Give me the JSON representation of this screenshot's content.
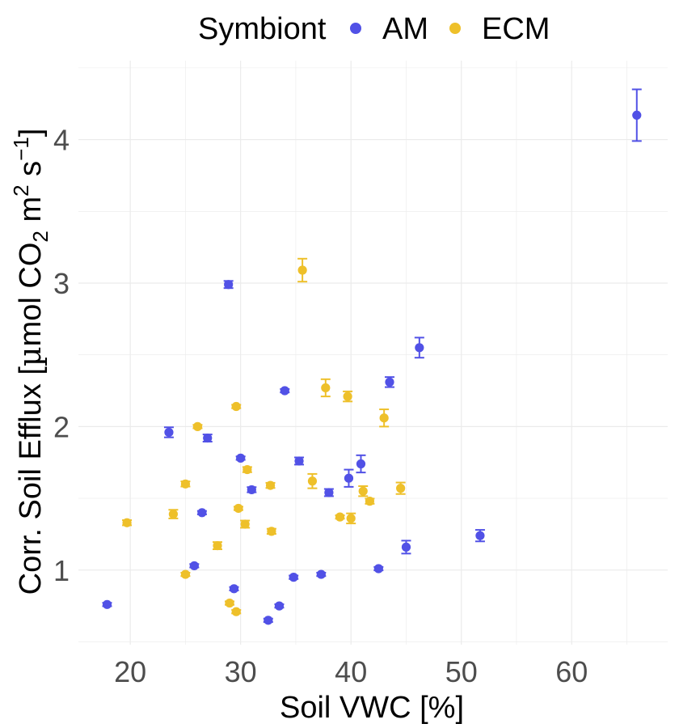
{
  "chart_data": {
    "type": "scatter",
    "xlabel": "Soil VWC [%]",
    "ylabel": {
      "prefix": "Corr. Soil Efflux  [",
      "mu": "µ",
      "mol": "mol CO",
      "sub": "2",
      "unit_m": " m",
      "sup_m": "2",
      "unit_s": "  s",
      "sup_s": "−1",
      "suffix": "]"
    },
    "xlim": [
      15.3,
      68.7
    ],
    "ylim": [
      0.48,
      4.55
    ],
    "x_ticks": [
      20,
      30,
      40,
      50,
      60
    ],
    "y_ticks": [
      1,
      2,
      3,
      4
    ],
    "grid": true,
    "legend": {
      "title": "Symbiont",
      "position": "top",
      "entries": [
        "AM",
        "ECM"
      ]
    },
    "series": [
      {
        "name": "AM",
        "color": "#5151e6",
        "points": [
          {
            "x": 17.9,
            "y": 0.76,
            "err": 0.012
          },
          {
            "x": 23.5,
            "y": 1.96,
            "err": 0.035
          },
          {
            "x": 25.8,
            "y": 1.03,
            "err": 0.012
          },
          {
            "x": 26.5,
            "y": 1.4,
            "err": 0.012
          },
          {
            "x": 27.0,
            "y": 1.92,
            "err": 0.025
          },
          {
            "x": 28.9,
            "y": 2.99,
            "err": 0.025
          },
          {
            "x": 29.4,
            "y": 0.87,
            "err": 0.012
          },
          {
            "x": 30.0,
            "y": 1.78,
            "err": 0.012
          },
          {
            "x": 31.0,
            "y": 1.56,
            "err": 0.018
          },
          {
            "x": 32.5,
            "y": 0.65,
            "err": 0.012
          },
          {
            "x": 33.5,
            "y": 0.75,
            "err": 0.012
          },
          {
            "x": 34.0,
            "y": 2.25,
            "err": 0.012
          },
          {
            "x": 34.8,
            "y": 0.95,
            "err": 0.012
          },
          {
            "x": 35.3,
            "y": 1.76,
            "err": 0.025
          },
          {
            "x": 37.3,
            "y": 0.97,
            "err": 0.012
          },
          {
            "x": 38.0,
            "y": 1.54,
            "err": 0.025
          },
          {
            "x": 39.8,
            "y": 1.64,
            "err": 0.06
          },
          {
            "x": 40.9,
            "y": 1.74,
            "err": 0.06
          },
          {
            "x": 42.5,
            "y": 1.01,
            "err": 0.012
          },
          {
            "x": 43.5,
            "y": 2.31,
            "err": 0.035
          },
          {
            "x": 45.0,
            "y": 1.16,
            "err": 0.045
          },
          {
            "x": 46.2,
            "y": 2.55,
            "err": 0.07
          },
          {
            "x": 51.7,
            "y": 1.24,
            "err": 0.04
          },
          {
            "x": 65.9,
            "y": 4.17,
            "err": 0.18
          }
        ]
      },
      {
        "name": "ECM",
        "color": "#eec02a",
        "points": [
          {
            "x": 19.7,
            "y": 1.33,
            "err": 0.018
          },
          {
            "x": 23.9,
            "y": 1.39,
            "err": 0.03
          },
          {
            "x": 25.0,
            "y": 1.6,
            "err": 0.018
          },
          {
            "x": 25.0,
            "y": 0.97,
            "err": 0.012
          },
          {
            "x": 26.1,
            "y": 2.0,
            "err": 0.012
          },
          {
            "x": 27.9,
            "y": 1.17,
            "err": 0.025
          },
          {
            "x": 29.0,
            "y": 0.77,
            "err": 0.012
          },
          {
            "x": 29.6,
            "y": 0.71,
            "err": 0.012
          },
          {
            "x": 29.6,
            "y": 2.14,
            "err": 0.012
          },
          {
            "x": 29.8,
            "y": 1.43,
            "err": 0.012
          },
          {
            "x": 30.4,
            "y": 1.32,
            "err": 0.025
          },
          {
            "x": 30.6,
            "y": 1.7,
            "err": 0.018
          },
          {
            "x": 32.7,
            "y": 1.59,
            "err": 0.018
          },
          {
            "x": 32.8,
            "y": 1.27,
            "err": 0.018
          },
          {
            "x": 35.6,
            "y": 3.09,
            "err": 0.08
          },
          {
            "x": 36.5,
            "y": 1.62,
            "err": 0.05
          },
          {
            "x": 37.7,
            "y": 2.27,
            "err": 0.06
          },
          {
            "x": 39.0,
            "y": 1.37,
            "err": 0.012
          },
          {
            "x": 39.7,
            "y": 2.21,
            "err": 0.035
          },
          {
            "x": 40.0,
            "y": 1.36,
            "err": 0.035
          },
          {
            "x": 41.1,
            "y": 1.55,
            "err": 0.035
          },
          {
            "x": 41.7,
            "y": 1.48,
            "err": 0.018
          },
          {
            "x": 43.0,
            "y": 2.06,
            "err": 0.06
          },
          {
            "x": 44.5,
            "y": 1.57,
            "err": 0.04
          }
        ]
      }
    ]
  }
}
